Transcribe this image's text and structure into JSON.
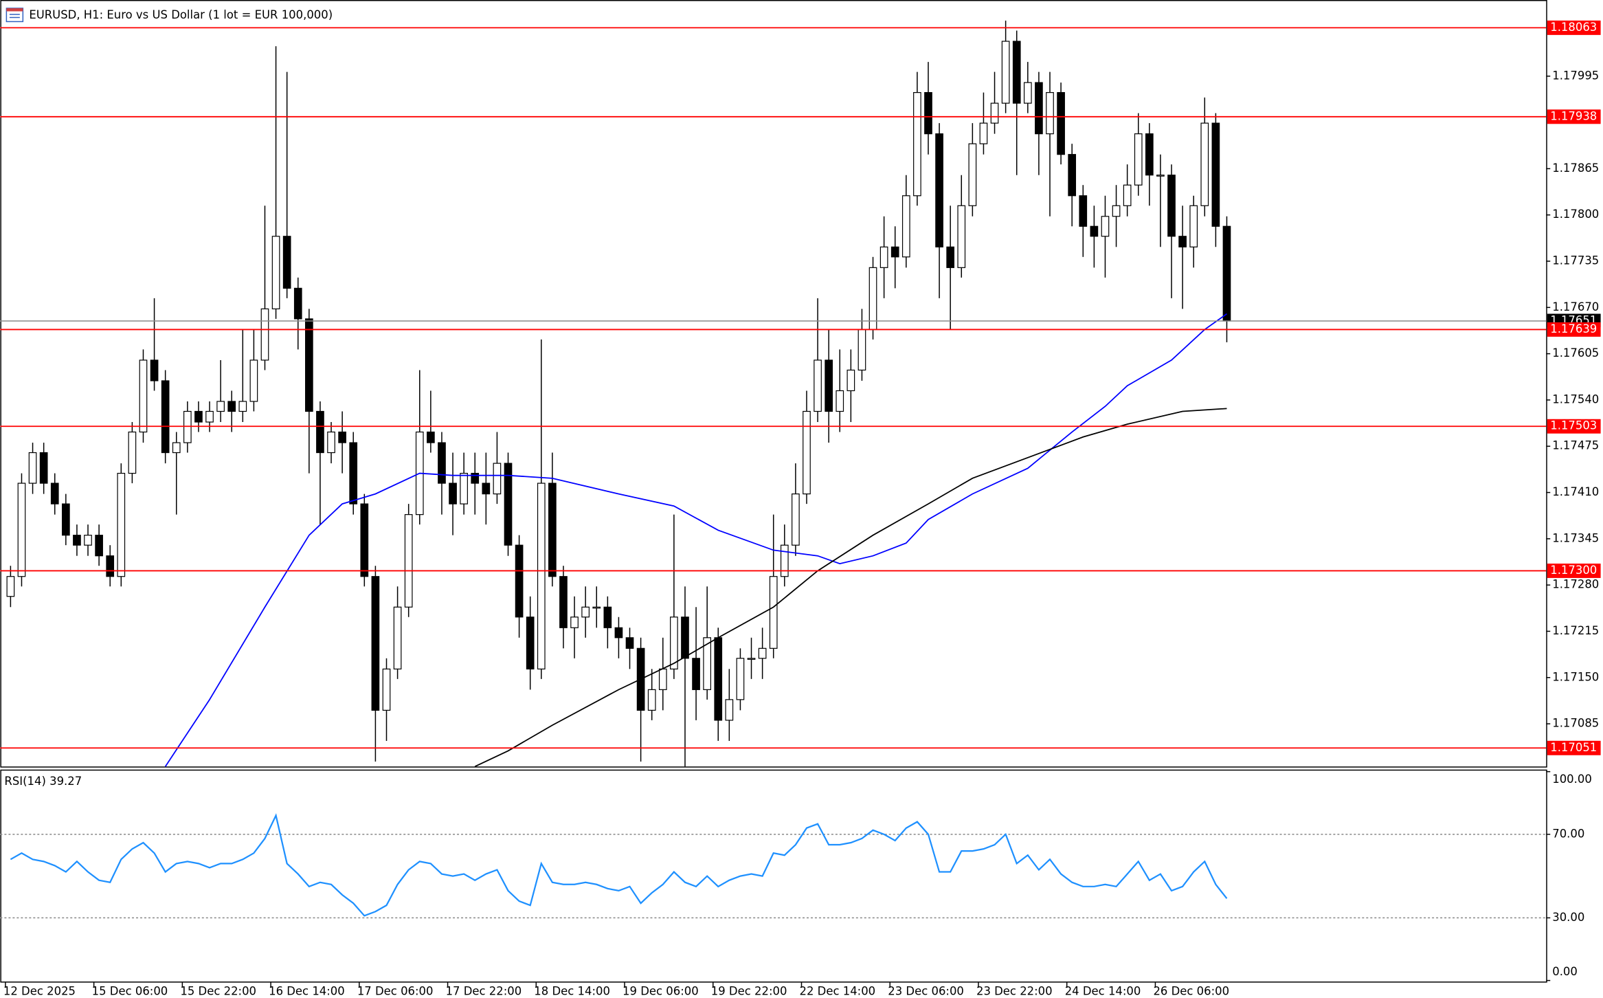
{
  "chart_data": {
    "type": "candlestick",
    "title": "EURUSD, H1:  Euro vs US Dollar (1 lot = EUR 100,000)",
    "x_labels": [
      "12 Dec 2025",
      "15 Dec 06:00",
      "15 Dec 22:00",
      "16 Dec 14:00",
      "17 Dec 06:00",
      "17 Dec 22:00",
      "18 Dec 14:00",
      "19 Dec 06:00",
      "19 Dec 22:00",
      "22 Dec 14:00",
      "23 Dec 06:00",
      "23 Dec 22:00",
      "24 Dec 14:00",
      "26 Dec 06:00"
    ],
    "ylim": [
      1.17025,
      1.18102
    ],
    "yticks": [
      1.17995,
      1.17865,
      {
        "value": 1.178,
        "label": "1.17800"
      },
      1.17735,
      {
        "value": 1.1767,
        "label": "1.17670"
      },
      1.17605,
      {
        "value": 1.1754,
        "label": "1.17540"
      },
      1.17475,
      {
        "value": 1.1741,
        "label": "1.17410"
      },
      1.17345,
      {
        "value": 1.1728,
        "label": "1.17280"
      },
      1.17215,
      {
        "value": 1.1715,
        "label": "1.17150"
      },
      1.17085
    ],
    "levels": [
      1.18063,
      1.17938,
      1.17639,
      1.17503,
      {
        "value": 1.173,
        "label": "1.17300"
      },
      1.17051
    ],
    "level_color": "#ff0000",
    "current_price": 1.17651,
    "up_color": "#ffffff",
    "down_color": "#000000",
    "open": [
      1.17264,
      1.17292,
      1.17423,
      1.17466,
      1.17423,
      1.17394,
      1.1735,
      1.17336,
      1.1735,
      1.17321,
      1.17292,
      1.17437,
      1.17495,
      1.17596,
      1.17567,
      1.17466,
      1.1748,
      1.17524,
      1.17509,
      1.17524,
      1.17538,
      1.17524,
      1.17538,
      1.17596,
      1.17668,
      1.1777,
      1.17697,
      1.17654,
      1.17524,
      1.17466,
      1.17495,
      1.1748,
      1.17394,
      1.17292,
      1.17104,
      1.17162,
      1.17249,
      1.17379,
      1.17495,
      1.1748,
      1.17423,
      1.17394,
      1.17437,
      1.17423,
      1.17408,
      1.17451,
      1.17336,
      1.17235,
      1.17162,
      1.17423,
      1.17292,
      1.1722,
      1.17235,
      1.17249,
      1.17249,
      1.1722,
      1.17206,
      1.17191,
      1.17104,
      1.17133,
      1.17162,
      1.17235,
      1.17177,
      1.17133,
      1.17206,
      1.1709,
      1.17119,
      1.17177,
      1.17177,
      1.17191,
      1.17292,
      1.17336,
      1.17408,
      1.17524,
      1.17596,
      1.17524,
      1.17553,
      1.17582,
      1.17639,
      1.17726,
      1.17755,
      1.17741,
      1.17827,
      1.17972,
      1.17914,
      1.17755,
      1.17726,
      1.17813,
      1.179,
      1.17929,
      1.17957,
      1.18044,
      1.17957,
      1.17986,
      1.17914,
      1.17972,
      1.17885,
      1.17827,
      1.17784,
      1.1777,
      1.17798,
      1.17813,
      1.17842,
      1.17914,
      1.17856,
      1.17856,
      1.1777,
      1.17755,
      1.17813,
      1.17929,
      1.17784
    ],
    "high": [
      1.17307,
      1.17437,
      1.1748,
      1.1748,
      1.17437,
      1.17408,
      1.17365,
      1.17365,
      1.17365,
      1.17336,
      1.17451,
      1.17509,
      1.17611,
      1.17683,
      1.17582,
      1.17495,
      1.17538,
      1.17538,
      1.17538,
      1.17596,
      1.17553,
      1.17639,
      1.17639,
      1.17813,
      1.18037,
      1.18001,
      1.17712,
      1.17668,
      1.17538,
      1.17509,
      1.17524,
      1.17495,
      1.17408,
      1.17307,
      1.17177,
      1.17278,
      1.17394,
      1.17582,
      1.17553,
      1.17495,
      1.17466,
      1.17466,
      1.17466,
      1.17466,
      1.17495,
      1.17466,
      1.1735,
      1.17264,
      1.17625,
      1.17466,
      1.17307,
      1.17264,
      1.17278,
      1.17278,
      1.17264,
      1.17235,
      1.1722,
      1.17206,
      1.17162,
      1.17206,
      1.17379,
      1.17278,
      1.17249,
      1.17278,
      1.1722,
      1.17162,
      1.17191,
      1.17206,
      1.1722,
      1.17379,
      1.17365,
      1.17451,
      1.17553,
      1.17683,
      1.17639,
      1.17611,
      1.17611,
      1.17668,
      1.17741,
      1.17798,
      1.17784,
      1.17856,
      1.18001,
      1.18015,
      1.17929,
      1.17813,
      1.17856,
      1.17929,
      1.17972,
      1.18001,
      1.18073,
      1.18059,
      1.18015,
      1.18001,
      1.18001,
      1.17986,
      1.179,
      1.17842,
      1.17813,
      1.17827,
      1.17842,
      1.17871,
      1.17943,
      1.17929,
      1.17885,
      1.17871,
      1.17813,
      1.17827,
      1.17965,
      1.17943,
      1.17798
    ],
    "low": [
      1.17249,
      1.17278,
      1.17408,
      1.17408,
      1.17379,
      1.17336,
      1.17321,
      1.17321,
      1.17307,
      1.17278,
      1.17278,
      1.17423,
      1.1748,
      1.17553,
      1.17451,
      1.17379,
      1.17466,
      1.17495,
      1.17495,
      1.17509,
      1.17495,
      1.17509,
      1.17524,
      1.17582,
      1.17654,
      1.17683,
      1.17611,
      1.17437,
      1.17365,
      1.17451,
      1.17437,
      1.17379,
      1.17278,
      1.17032,
      1.17061,
      1.17148,
      1.17235,
      1.17365,
      1.17466,
      1.17379,
      1.1735,
      1.17379,
      1.17379,
      1.17365,
      1.17394,
      1.17321,
      1.17206,
      1.17133,
      1.17148,
      1.17278,
      1.17191,
      1.17177,
      1.17206,
      1.1722,
      1.17191,
      1.17177,
      1.17162,
      1.17032,
      1.1709,
      1.17104,
      1.17148,
      1.17025,
      1.1709,
      1.17119,
      1.17061,
      1.17061,
      1.17104,
      1.17148,
      1.17148,
      1.17177,
      1.17278,
      1.17321,
      1.17394,
      1.17509,
      1.1748,
      1.17495,
      1.17509,
      1.17567,
      1.17625,
      1.17683,
      1.17697,
      1.17726,
      1.17813,
      1.17885,
      1.17683,
      1.17639,
      1.17712,
      1.17798,
      1.17885,
      1.17914,
      1.17943,
      1.17856,
      1.17943,
      1.17856,
      1.17798,
      1.17871,
      1.17784,
      1.17741,
      1.17726,
      1.17712,
      1.17755,
      1.17798,
      1.17827,
      1.17813,
      1.17755,
      1.17683,
      1.17668,
      1.17726,
      1.17798,
      1.17755,
      1.17621
    ],
    "close": [
      1.17292,
      1.17423,
      1.17466,
      1.17423,
      1.17394,
      1.1735,
      1.17336,
      1.1735,
      1.17321,
      1.17292,
      1.17437,
      1.17495,
      1.17596,
      1.17567,
      1.17466,
      1.1748,
      1.17524,
      1.17509,
      1.17524,
      1.17538,
      1.17524,
      1.17538,
      1.17596,
      1.17668,
      1.1777,
      1.17697,
      1.17654,
      1.17524,
      1.17466,
      1.17495,
      1.1748,
      1.17394,
      1.17292,
      1.17104,
      1.17162,
      1.17249,
      1.17379,
      1.17495,
      1.1748,
      1.17423,
      1.17394,
      1.17437,
      1.17423,
      1.17408,
      1.17451,
      1.17336,
      1.17235,
      1.17162,
      1.17423,
      1.17292,
      1.1722,
      1.17235,
      1.17249,
      1.17249,
      1.1722,
      1.17206,
      1.17191,
      1.17104,
      1.17133,
      1.17162,
      1.17235,
      1.17177,
      1.17133,
      1.17206,
      1.1709,
      1.17119,
      1.17177,
      1.17177,
      1.17191,
      1.17292,
      1.17336,
      1.17408,
      1.17524,
      1.17596,
      1.17524,
      1.17553,
      1.17582,
      1.17639,
      1.17726,
      1.17755,
      1.17741,
      1.17827,
      1.17972,
      1.17914,
      1.17755,
      1.17726,
      1.17813,
      1.179,
      1.17929,
      1.17957,
      1.18044,
      1.17957,
      1.17986,
      1.17914,
      1.17972,
      1.17885,
      1.17827,
      1.17784,
      1.1777,
      1.17798,
      1.17813,
      1.17842,
      1.17914,
      1.17856,
      1.17856,
      1.1777,
      1.17755,
      1.17813,
      1.17929,
      1.17784,
      1.17651
    ],
    "lines": [
      {
        "color": "#0000ff",
        "x": [
          14,
          18,
          23,
          27,
          30,
          33,
          37,
          40,
          45,
          49,
          55,
          60,
          64,
          69,
          73,
          75,
          78,
          81,
          83,
          87,
          92,
          96,
          99,
          101,
          105,
          108,
          110
        ],
        "values": [
          1.17025,
          1.17119,
          1.17249,
          1.1735,
          1.17394,
          1.17408,
          1.17437,
          1.17434,
          1.17434,
          1.1743,
          1.17408,
          1.17391,
          1.17357,
          1.17329,
          1.17321,
          1.1731,
          1.17321,
          1.17339,
          1.17372,
          1.17408,
          1.17444,
          1.17495,
          1.17531,
          1.1756,
          1.17596,
          1.17639,
          1.17661
        ]
      },
      {
        "color": "#000000",
        "x": [
          42,
          45,
          49,
          55,
          60,
          64,
          69,
          73,
          78,
          83,
          87,
          92,
          97,
          101,
          106,
          110
        ],
        "values": [
          1.17025,
          1.17047,
          1.17083,
          1.17133,
          1.1717,
          1.17206,
          1.17249,
          1.173,
          1.1735,
          1.17394,
          1.1743,
          1.17459,
          1.17488,
          1.17506,
          1.17524,
          1.17528
        ]
      }
    ],
    "rsi": {
      "label": "RSI(14) 39.27",
      "color": "#1e90ff",
      "ylim": [
        0,
        100
      ],
      "yticks": [
        {
          "value": 100,
          "label": "100.00"
        },
        {
          "value": 70,
          "label": "70.00"
        },
        {
          "value": 30,
          "label": "30.00"
        },
        {
          "value": 0,
          "label": "0.00"
        }
      ],
      "levels": [
        70,
        30
      ],
      "values": [
        58,
        61,
        58,
        57,
        55,
        52,
        57,
        52,
        48,
        47,
        58,
        63,
        66,
        61,
        52,
        56,
        57,
        56,
        54,
        56,
        56,
        58,
        61,
        68,
        79,
        56,
        51,
        45,
        47,
        46,
        41,
        37,
        31,
        33,
        36,
        46,
        53,
        57,
        56,
        51,
        50,
        51,
        48,
        51,
        53,
        43,
        38,
        36,
        56,
        47,
        46,
        46,
        47,
        46,
        44,
        43,
        45,
        37,
        42,
        46,
        52,
        47,
        45,
        50,
        45,
        48,
        50,
        51,
        50,
        61,
        60,
        65,
        73,
        75,
        65,
        65,
        66,
        68,
        72,
        70,
        67,
        73,
        76,
        70,
        52,
        52,
        62,
        62,
        63,
        65,
        70,
        56,
        60,
        53,
        58,
        51,
        47,
        45,
        45,
        46,
        45,
        51,
        57,
        48,
        51,
        43,
        45,
        52,
        57,
        46,
        39.27
      ]
    }
  }
}
